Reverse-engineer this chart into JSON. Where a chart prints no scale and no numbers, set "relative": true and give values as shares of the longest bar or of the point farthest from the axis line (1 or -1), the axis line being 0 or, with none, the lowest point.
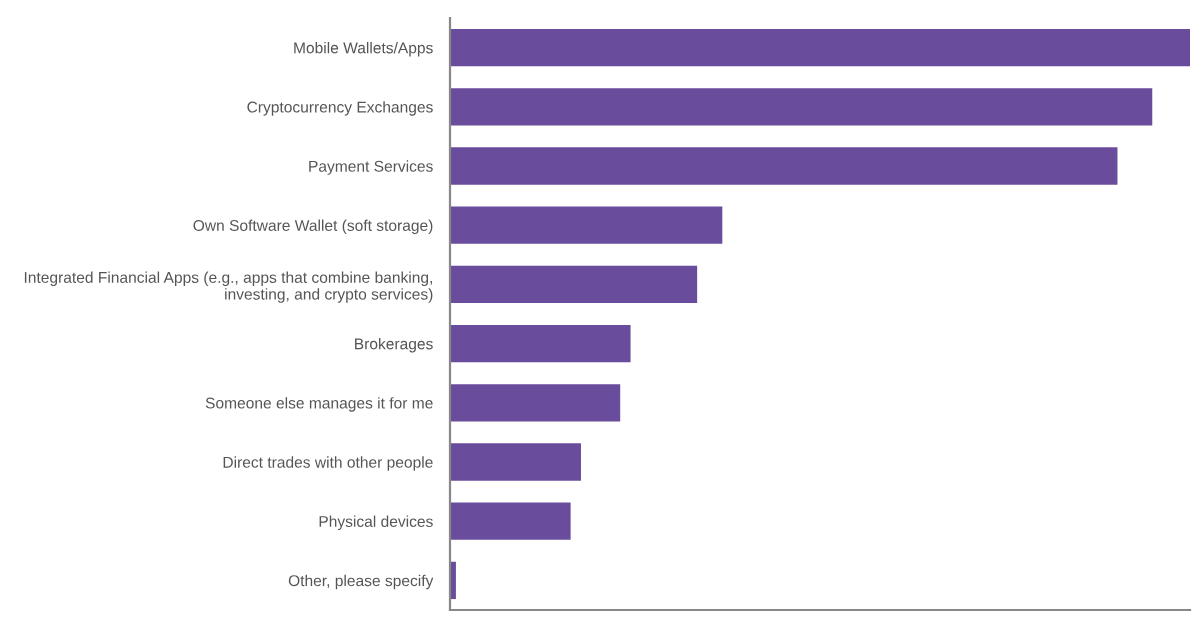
{
  "chart_data": {
    "type": "bar",
    "orientation": "horizontal",
    "relative": true,
    "color": "#6a4c9c",
    "grid": false,
    "legend": false,
    "categories": [
      "Mobile Wallets/Apps",
      "Cryptocurrency Exchanges",
      "Payment Services",
      "Own Software Wallet (soft storage)",
      "Integrated Financial Apps (e.g., apps that combine banking,\ninvesting, and crypto services)",
      "Brokerages",
      "Someone else manages it for me",
      "Direct trades with other people",
      "Physical devices",
      "Other, please specify"
    ],
    "values": [
      1,
      0.949,
      0.902,
      0.368,
      0.334,
      0.244,
      0.23,
      0.177,
      0.163,
      0.008
    ]
  }
}
